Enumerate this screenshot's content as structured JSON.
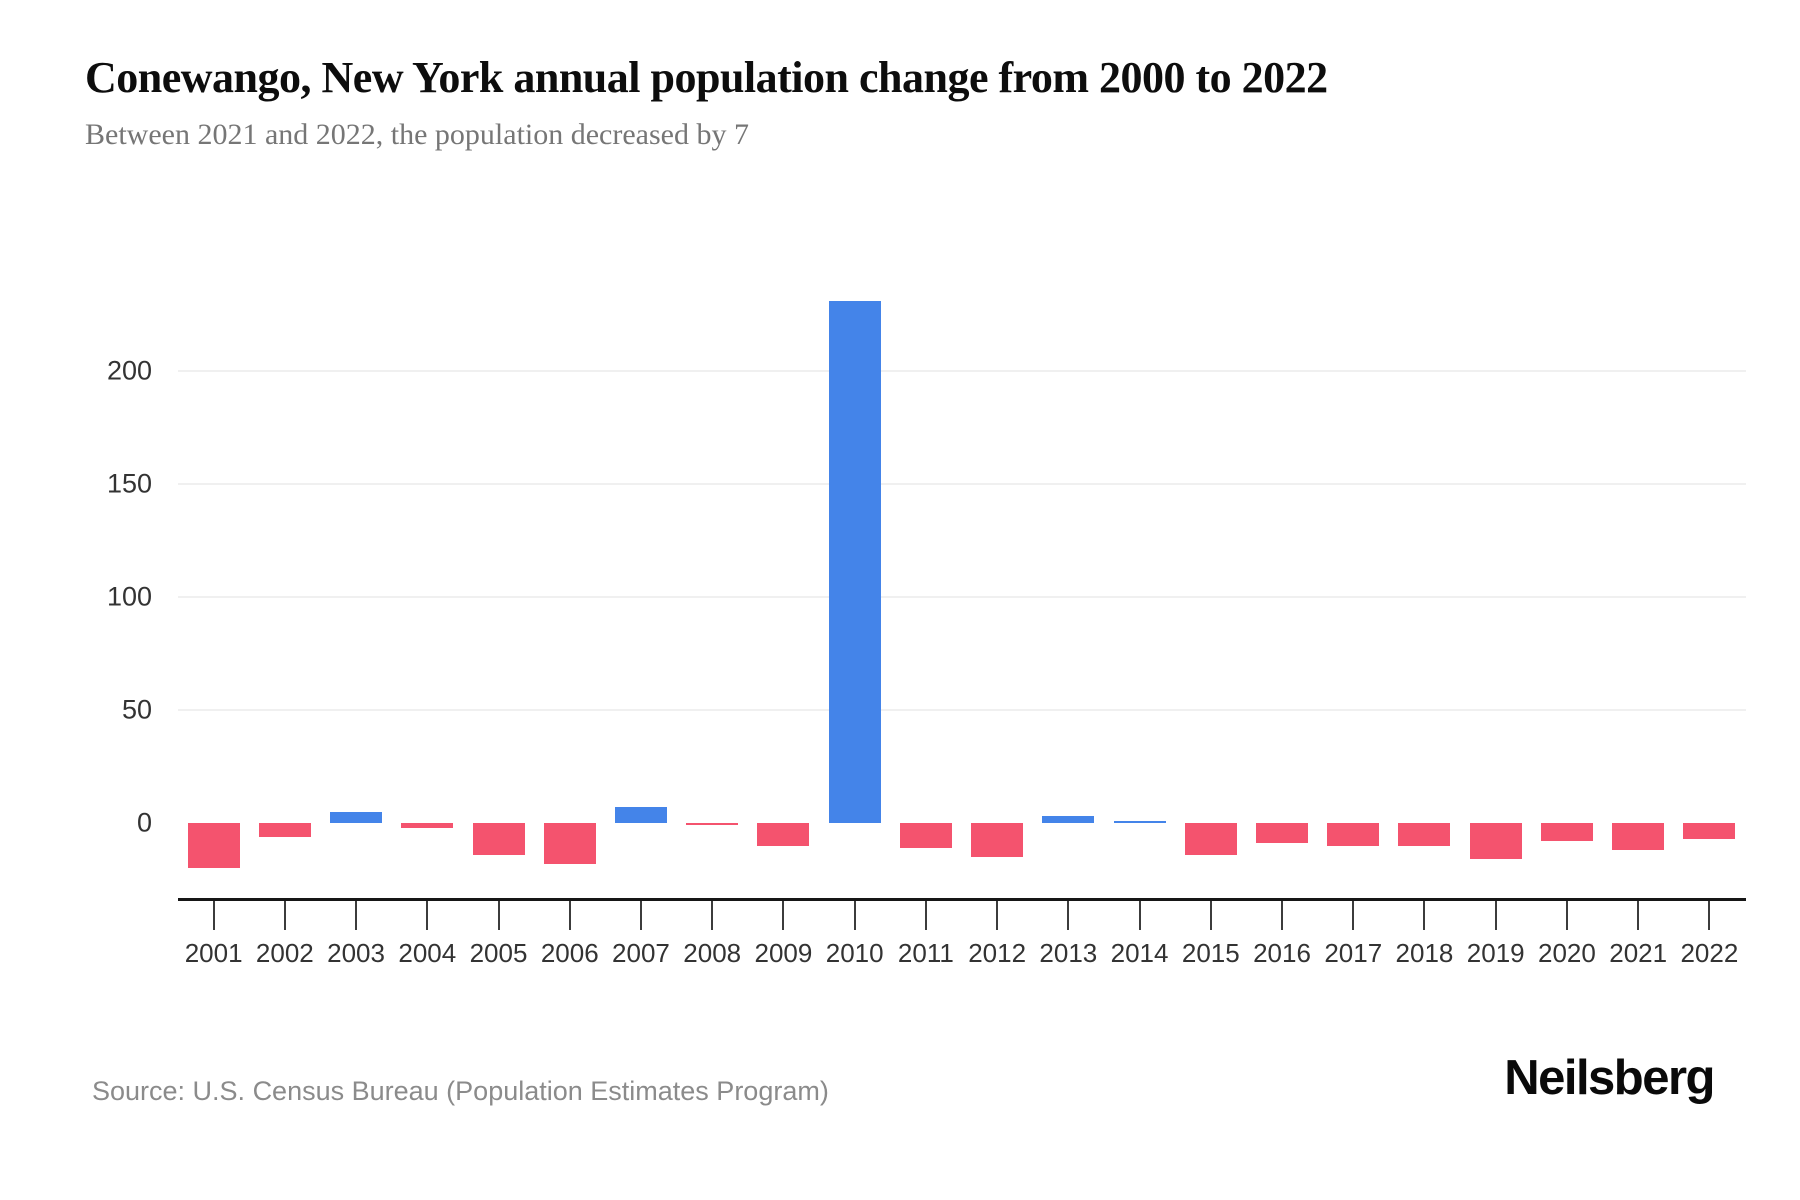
{
  "title": "Conewango, New York annual population change from 2000 to 2022",
  "subtitle": "Between 2021 and 2022, the population decreased by 7",
  "source": "Source: U.S. Census Bureau (Population Estimates Program)",
  "brand": "Neilsberg",
  "colors": {
    "bar_positive": "#4484E9",
    "bar_negative": "#F4536E",
    "gridline": "#f0f0f0",
    "axis_line": "#161616",
    "tick_label": "#333333",
    "title_text": "#0d0d0d",
    "subtitle_text": "#767676",
    "source_text": "#8b8b8b"
  },
  "chart_data": {
    "type": "bar",
    "title": "Conewango, New York annual population change from 2000 to 2022",
    "xlabel": "",
    "ylabel": "",
    "categories": [
      "2001",
      "2002",
      "2003",
      "2004",
      "2005",
      "2006",
      "2007",
      "2008",
      "2009",
      "2010",
      "2011",
      "2012",
      "2013",
      "2014",
      "2015",
      "2016",
      "2017",
      "2018",
      "2019",
      "2020",
      "2021",
      "2022"
    ],
    "values": [
      -20,
      -6,
      5,
      -2,
      -14,
      -18,
      7,
      -1,
      -10,
      231,
      -11,
      -15,
      3,
      1,
      -14,
      -9,
      -10,
      -10,
      -16,
      -8,
      -12,
      -7
    ],
    "yticks": [
      0,
      50,
      100,
      150,
      200
    ],
    "ylim": [
      -25,
      235
    ],
    "grid": "horizontal",
    "legend": "none",
    "annotations": []
  }
}
